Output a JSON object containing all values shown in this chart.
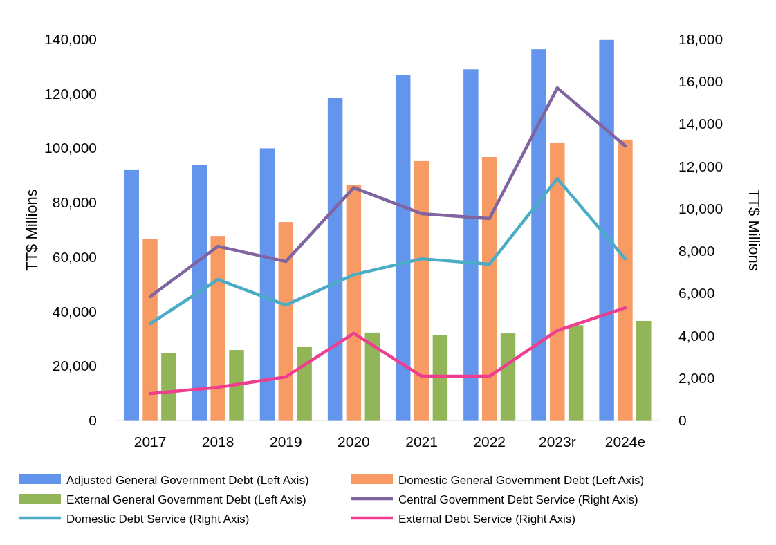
{
  "chart_data": {
    "type": "bar",
    "ylabel": "TT$ Millions",
    "y2label": "TT$ Millions",
    "categories": [
      "2017",
      "2018",
      "2019",
      "2020",
      "2021",
      "2022",
      "2023r",
      "2024e"
    ],
    "ylim": [
      0,
      140000
    ],
    "yticks": [
      {
        "value": 0,
        "label": "0"
      },
      {
        "value": 20000,
        "label": "20,000"
      },
      {
        "value": 40000,
        "label": "40,000"
      },
      {
        "value": 60000,
        "label": "60,000"
      },
      {
        "value": 80000,
        "label": "80,000"
      },
      {
        "value": 100000,
        "label": "100,000"
      },
      {
        "value": 120000,
        "label": "120,000"
      },
      {
        "value": 140000,
        "label": "140,000"
      }
    ],
    "y2lim": [
      0,
      18000
    ],
    "y2ticks": [
      {
        "value": 0,
        "label": "0"
      },
      {
        "value": 2000,
        "label": "2,000"
      },
      {
        "value": 4000,
        "label": "4,000"
      },
      {
        "value": 6000,
        "label": "6,000"
      },
      {
        "value": 8000,
        "label": "8,000"
      },
      {
        "value": 10000,
        "label": "10,000"
      },
      {
        "value": 12000,
        "label": "12,000"
      },
      {
        "value": 14000,
        "label": "14,000"
      },
      {
        "value": 16000,
        "label": "16,000"
      },
      {
        "value": 18000,
        "label": "18,000"
      }
    ],
    "legend": "bottom",
    "grid": false,
    "marker": "none",
    "line_style": "solid",
    "series": [
      {
        "name": "Adjusted General Government Debt (Left Axis)",
        "color": "#6495ed",
        "values": [
          92000,
          94000,
          100000,
          118500,
          127000,
          129000,
          136400,
          139800
        ]
      },
      {
        "name": "Domestic General Government Debt (Left Axis)",
        "color": "#f79a63",
        "values": [
          66600,
          67800,
          72900,
          86400,
          95300,
          96800,
          101900,
          103200
        ]
      },
      {
        "name": "External General Government Debt (Left Axis)",
        "color": "#92b558",
        "values": [
          24900,
          25900,
          27200,
          32300,
          31500,
          32000,
          35000,
          36600
        ]
      },
      {
        "name": "Central Government Debt Service (Right Axis)",
        "type": "line",
        "axis": "y2",
        "color": "#8064a2",
        "values": [
          5850,
          8230,
          7510,
          11000,
          9770,
          9540,
          15710,
          12970
        ]
      },
      {
        "name": "Domestic Debt Service (Right Axis)",
        "type": "line",
        "axis": "y2",
        "color": "#4bacc6",
        "values": [
          4570,
          6660,
          5450,
          6890,
          7640,
          7380,
          11430,
          7640
        ]
      },
      {
        "name": "External Debt Service (Right Axis)",
        "type": "line",
        "axis": "y2",
        "color": "#ef3e8f",
        "values": [
          1270,
          1570,
          2060,
          4120,
          2090,
          2090,
          4250,
          5320
        ]
      }
    ]
  }
}
